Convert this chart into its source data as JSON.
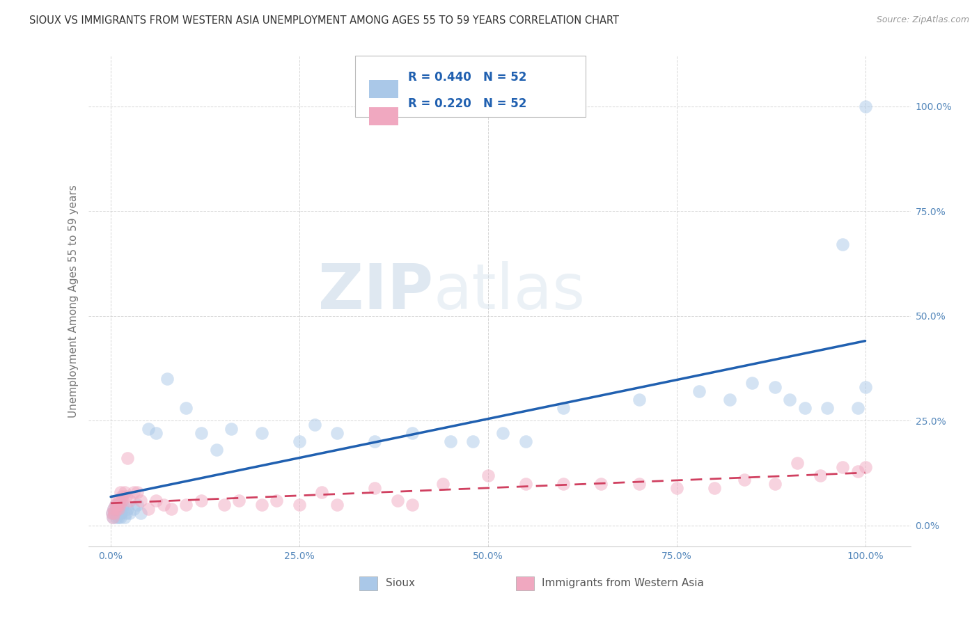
{
  "title": "SIOUX VS IMMIGRANTS FROM WESTERN ASIA UNEMPLOYMENT AMONG AGES 55 TO 59 YEARS CORRELATION CHART",
  "source": "Source: ZipAtlas.com",
  "ylabel": "Unemployment Among Ages 55 to 59 years",
  "watermark": "ZIPatlas",
  "sioux_color": "#aac8e8",
  "immig_color": "#f0a8c0",
  "sioux_line_color": "#2060b0",
  "immig_line_color": "#d04060",
  "bg_color": "#ffffff",
  "grid_color": "#cccccc",
  "R1": 0.44,
  "R2": 0.22,
  "N1": 52,
  "N2": 52,
  "sioux_x": [
    0.2,
    0.3,
    0.4,
    0.5,
    0.6,
    0.7,
    0.8,
    0.9,
    1.0,
    1.1,
    1.2,
    1.3,
    1.4,
    1.5,
    1.6,
    1.8,
    2.0,
    2.2,
    2.5,
    3.0,
    3.5,
    4.0,
    5.0,
    6.0,
    7.5,
    10.0,
    12.0,
    14.0,
    16.0,
    20.0,
    25.0,
    27.0,
    30.0,
    35.0,
    40.0,
    45.0,
    48.0,
    52.0,
    55.0,
    60.0,
    70.0,
    78.0,
    82.0,
    85.0,
    88.0,
    90.0,
    92.0,
    95.0,
    97.0,
    99.0,
    100.0,
    100.0
  ],
  "sioux_y": [
    3.0,
    2.0,
    4.0,
    3.0,
    5.0,
    2.0,
    3.0,
    4.0,
    2.0,
    3.0,
    4.0,
    2.0,
    3.0,
    4.0,
    5.0,
    2.0,
    3.0,
    4.0,
    3.0,
    4.0,
    5.0,
    3.0,
    23.0,
    22.0,
    35.0,
    28.0,
    22.0,
    18.0,
    23.0,
    22.0,
    20.0,
    24.0,
    22.0,
    20.0,
    22.0,
    20.0,
    20.0,
    22.0,
    20.0,
    28.0,
    30.0,
    32.0,
    30.0,
    34.0,
    33.0,
    30.0,
    28.0,
    28.0,
    67.0,
    28.0,
    100.0,
    33.0
  ],
  "immig_x": [
    0.2,
    0.3,
    0.4,
    0.5,
    0.6,
    0.7,
    0.8,
    0.9,
    1.0,
    1.1,
    1.2,
    1.3,
    1.5,
    1.6,
    1.8,
    2.0,
    2.2,
    2.5,
    3.0,
    3.5,
    4.0,
    5.0,
    6.0,
    7.0,
    8.0,
    10.0,
    12.0,
    15.0,
    17.0,
    20.0,
    22.0,
    25.0,
    28.0,
    30.0,
    35.0,
    38.0,
    40.0,
    44.0,
    50.0,
    55.0,
    60.0,
    65.0,
    70.0,
    75.0,
    80.0,
    84.0,
    88.0,
    91.0,
    94.0,
    97.0,
    99.0,
    100.0
  ],
  "immig_y": [
    3.0,
    2.0,
    4.0,
    3.0,
    5.0,
    4.0,
    6.0,
    5.0,
    4.0,
    6.0,
    5.0,
    8.0,
    7.0,
    6.0,
    8.0,
    7.0,
    16.0,
    6.0,
    8.0,
    8.0,
    6.0,
    4.0,
    6.0,
    5.0,
    4.0,
    5.0,
    6.0,
    5.0,
    6.0,
    5.0,
    6.0,
    5.0,
    8.0,
    5.0,
    9.0,
    6.0,
    5.0,
    10.0,
    12.0,
    10.0,
    10.0,
    10.0,
    10.0,
    9.0,
    9.0,
    11.0,
    10.0,
    15.0,
    12.0,
    14.0,
    13.0,
    14.0
  ]
}
